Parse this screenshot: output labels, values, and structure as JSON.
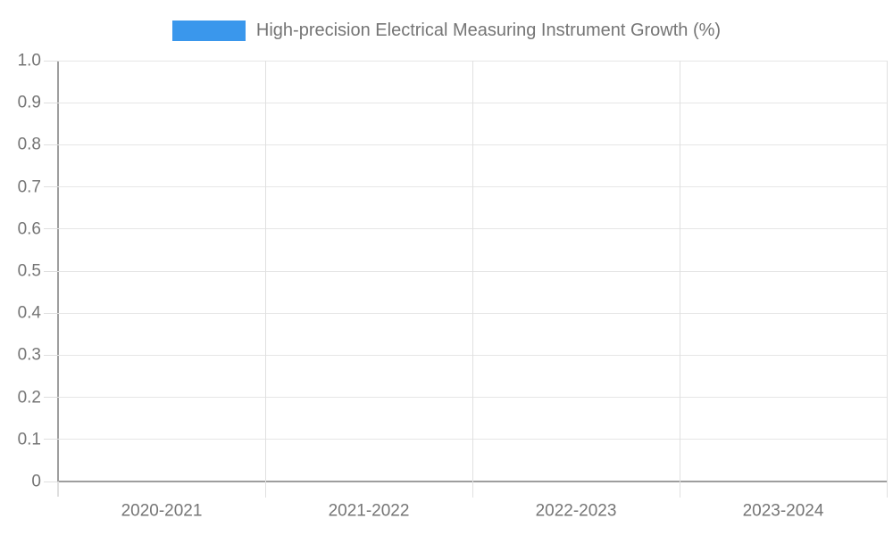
{
  "legend": {
    "label": "High-precision Electrical Measuring Instrument Growth (%)"
  },
  "colors": {
    "accent": "#3A97EC",
    "text": "#757575",
    "hgrid": "#E6E6E6",
    "vsep": "#E0E0E0",
    "axis": "#9E9E9E",
    "tick_stub": "#DFDFDF",
    "background": "#FFFFFF"
  },
  "chart_data": {
    "type": "bar",
    "title": "High-precision Electrical Measuring Instrument Growth (%)",
    "categories": [
      "2020-2021",
      "2021-2022",
      "2022-2023",
      "2023-2024"
    ],
    "series": [
      {
        "name": "High-precision Electrical Measuring Instrument Growth (%)",
        "values": [
          null,
          null,
          null,
          null
        ]
      }
    ],
    "xlabel": "",
    "ylabel": "",
    "ylim": [
      0,
      1.0
    ],
    "y_ticks": [
      "1.0",
      "0.9",
      "0.8",
      "0.7",
      "0.6",
      "0.5",
      "0.4",
      "0.3",
      "0.2",
      "0.1",
      "0"
    ],
    "grid": "on",
    "legend_position": "top-center"
  }
}
